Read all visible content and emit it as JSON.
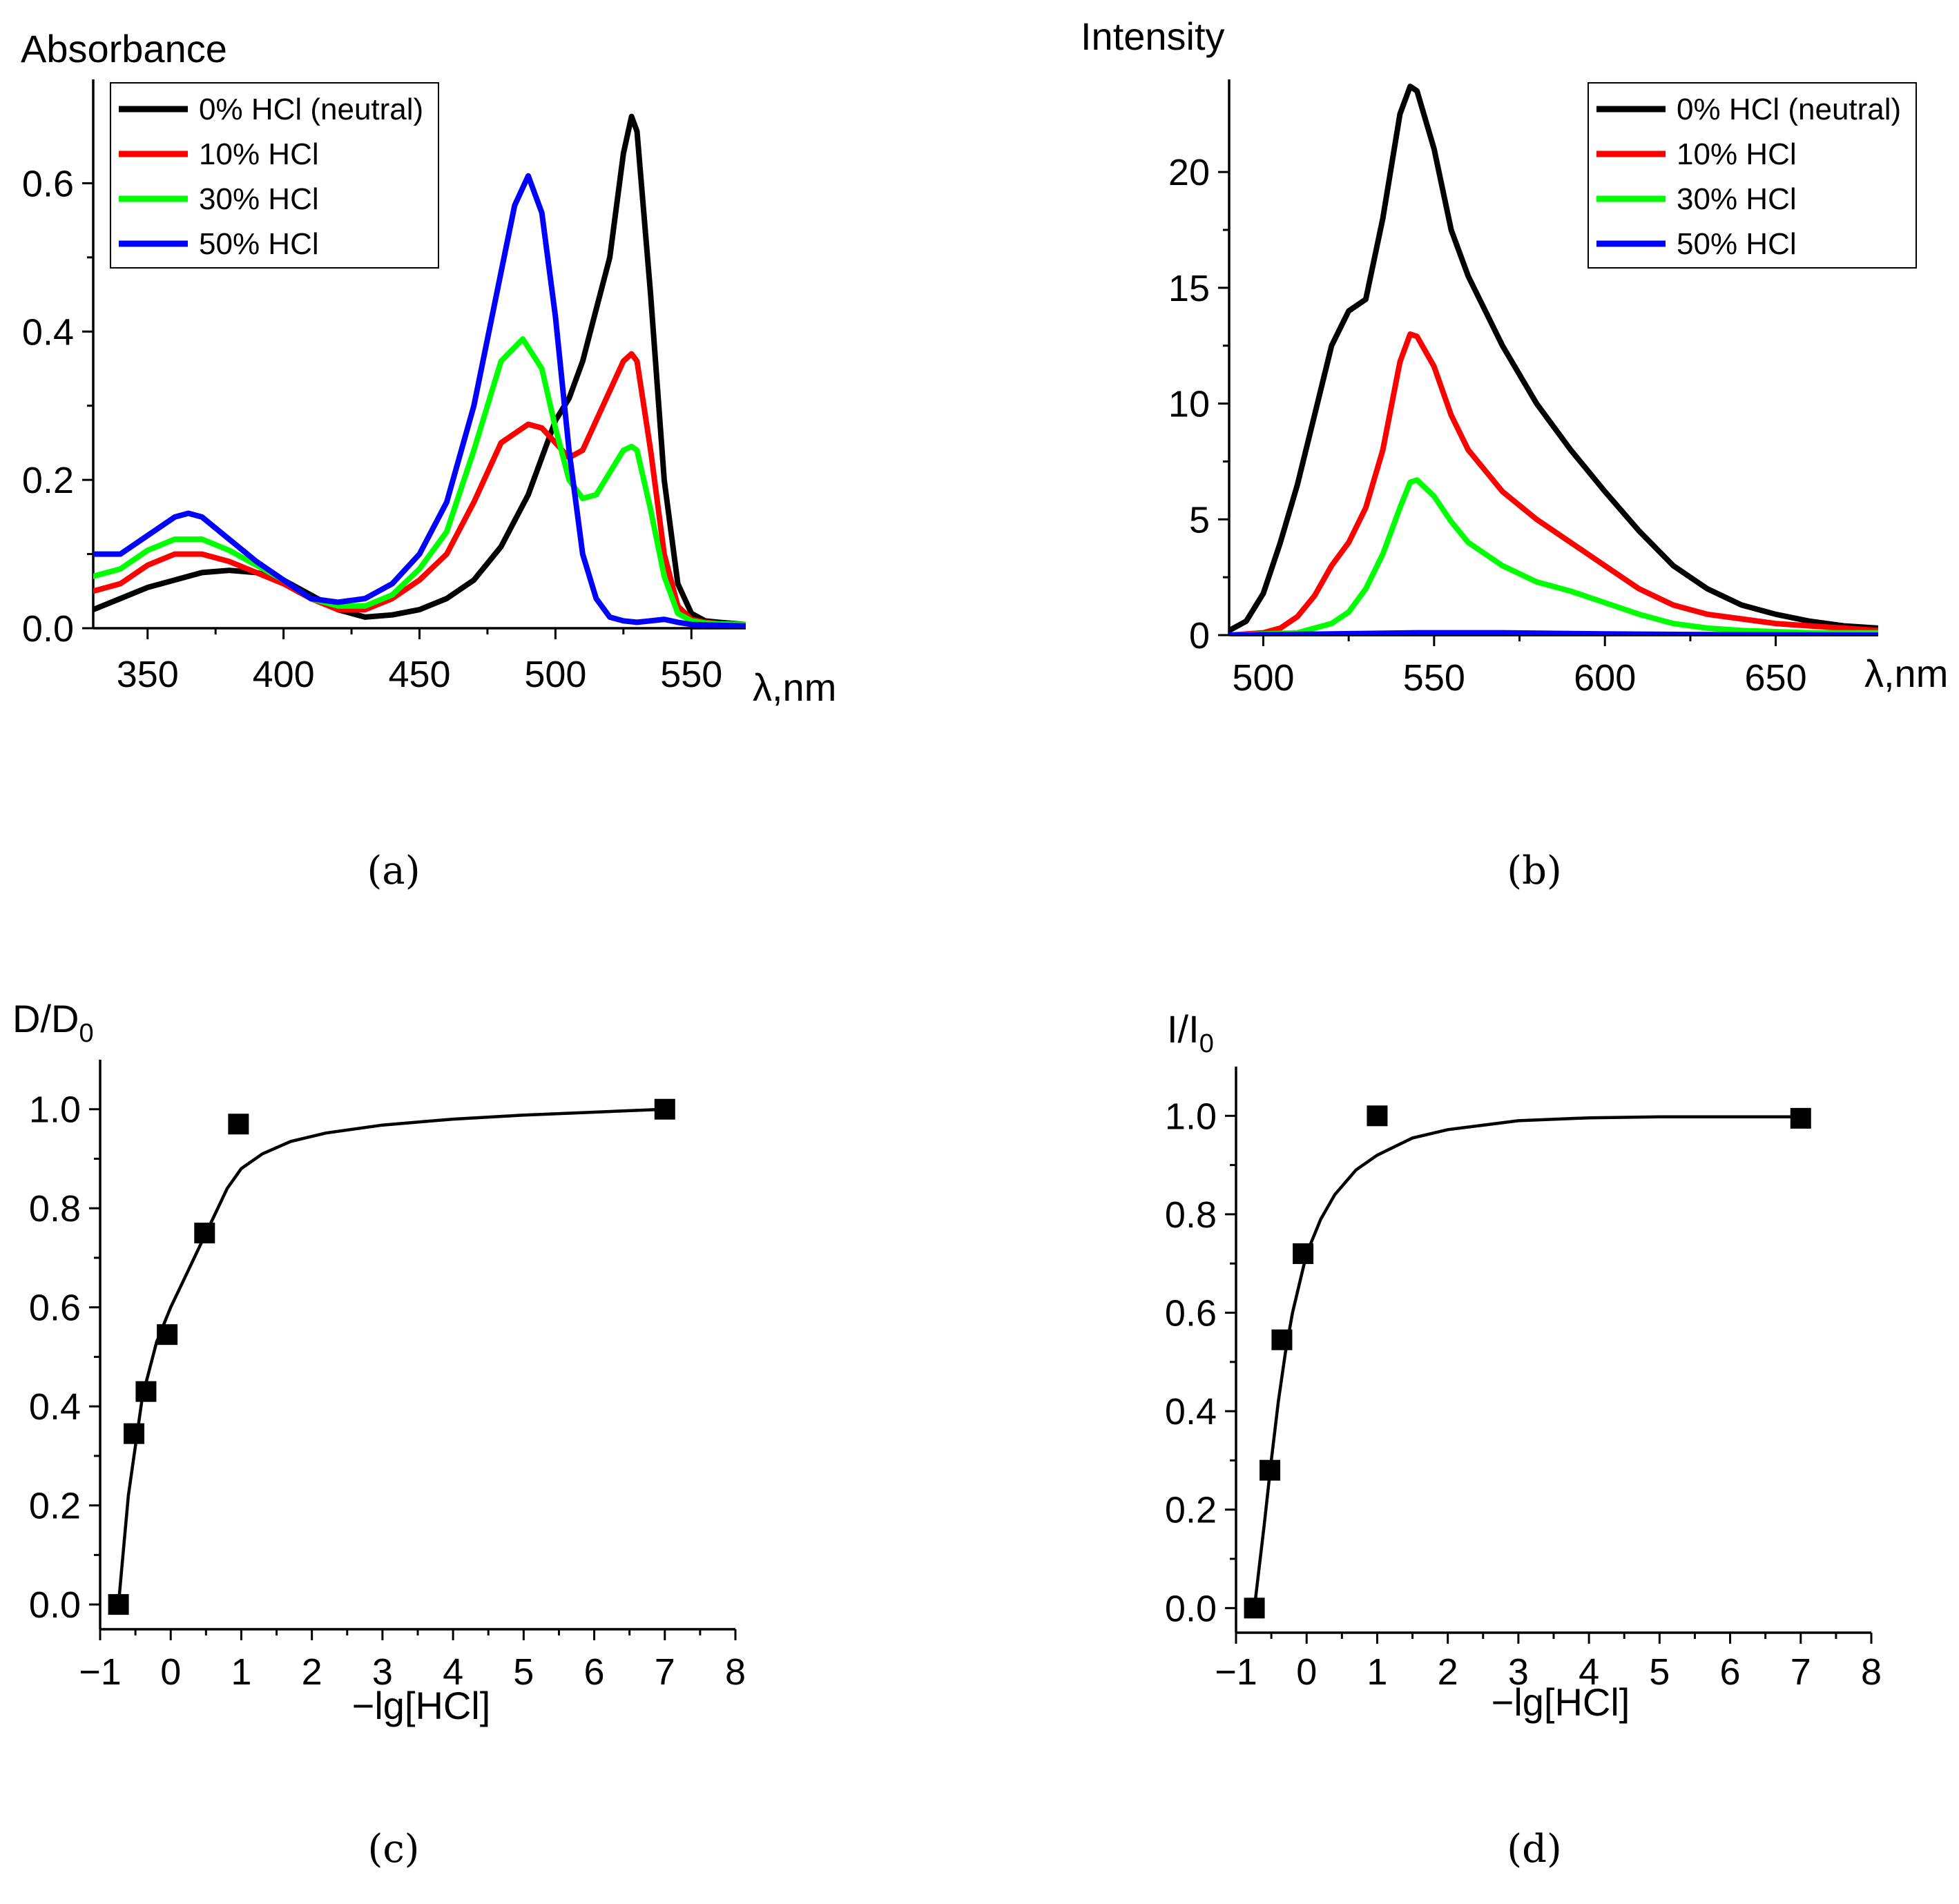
{
  "panel_labels": [
    "(a)",
    "(b)",
    "(c)",
    "(d)"
  ],
  "chart_data": [
    {
      "id": "a",
      "type": "line",
      "ylabel": "Absorbance",
      "xlabel": "λ,nm",
      "xlim": [
        330,
        570
      ],
      "ylim": [
        0,
        0.74
      ],
      "xticks": [
        350,
        400,
        450,
        500,
        550
      ],
      "yticks": [
        0.0,
        0.2,
        0.4,
        0.6
      ],
      "ytick_labels": [
        "0.0",
        "0.2",
        "0.4",
        "0.6"
      ],
      "legend": "top-left",
      "grid": false,
      "series": [
        {
          "name": "0% HCl (neutral)",
          "color": "#000000",
          "x": [
            330,
            340,
            350,
            360,
            370,
            380,
            390,
            400,
            410,
            420,
            430,
            440,
            450,
            460,
            470,
            480,
            490,
            495,
            500,
            505,
            510,
            515,
            520,
            525,
            528,
            530,
            535,
            540,
            545,
            550,
            555,
            560,
            570
          ],
          "y": [
            0.025,
            0.04,
            0.055,
            0.065,
            0.075,
            0.078,
            0.075,
            0.065,
            0.045,
            0.025,
            0.015,
            0.018,
            0.025,
            0.04,
            0.065,
            0.11,
            0.18,
            0.23,
            0.28,
            0.31,
            0.36,
            0.43,
            0.5,
            0.64,
            0.69,
            0.67,
            0.45,
            0.2,
            0.06,
            0.02,
            0.01,
            0.008,
            0.005
          ]
        },
        {
          "name": "10% HCl",
          "color": "#ff0000",
          "x": [
            330,
            340,
            350,
            360,
            370,
            380,
            390,
            400,
            410,
            420,
            430,
            440,
            450,
            460,
            470,
            480,
            490,
            495,
            500,
            505,
            510,
            515,
            520,
            525,
            528,
            530,
            535,
            540,
            545,
            550,
            555,
            560,
            570
          ],
          "y": [
            0.05,
            0.06,
            0.085,
            0.1,
            0.1,
            0.09,
            0.075,
            0.06,
            0.04,
            0.025,
            0.025,
            0.04,
            0.065,
            0.1,
            0.17,
            0.25,
            0.275,
            0.27,
            0.25,
            0.23,
            0.24,
            0.28,
            0.32,
            0.36,
            0.37,
            0.36,
            0.24,
            0.1,
            0.03,
            0.012,
            0.008,
            0.006,
            0.005
          ]
        },
        {
          "name": "30% HCl",
          "color": "#00ff00",
          "x": [
            330,
            340,
            350,
            360,
            370,
            380,
            390,
            400,
            410,
            420,
            430,
            440,
            450,
            460,
            470,
            480,
            488,
            495,
            500,
            505,
            510,
            515,
            520,
            525,
            528,
            530,
            535,
            540,
            545,
            550,
            555,
            560,
            570
          ],
          "y": [
            0.07,
            0.08,
            0.105,
            0.12,
            0.12,
            0.105,
            0.085,
            0.065,
            0.04,
            0.03,
            0.03,
            0.045,
            0.08,
            0.13,
            0.24,
            0.36,
            0.39,
            0.35,
            0.27,
            0.2,
            0.175,
            0.18,
            0.21,
            0.24,
            0.245,
            0.24,
            0.16,
            0.07,
            0.02,
            0.01,
            0.007,
            0.006,
            0.005
          ]
        },
        {
          "name": "50% HCl",
          "color": "#0000ff",
          "x": [
            330,
            340,
            350,
            360,
            365,
            370,
            380,
            390,
            400,
            410,
            420,
            430,
            440,
            450,
            460,
            470,
            480,
            485,
            490,
            495,
            500,
            505,
            510,
            515,
            520,
            525,
            530,
            535,
            540,
            545,
            550,
            560,
            570
          ],
          "y": [
            0.1,
            0.1,
            0.125,
            0.15,
            0.155,
            0.15,
            0.12,
            0.09,
            0.065,
            0.04,
            0.035,
            0.04,
            0.06,
            0.1,
            0.17,
            0.3,
            0.48,
            0.57,
            0.61,
            0.56,
            0.42,
            0.24,
            0.1,
            0.04,
            0.015,
            0.01,
            0.008,
            0.01,
            0.012,
            0.008,
            0.005,
            0.004,
            0.003
          ]
        }
      ]
    },
    {
      "id": "b",
      "type": "line",
      "ylabel": "Intensity",
      "xlabel": "λ,nm",
      "xlim": [
        490,
        680
      ],
      "ylim": [
        0,
        24
      ],
      "xticks": [
        500,
        550,
        600,
        650
      ],
      "yticks": [
        0,
        5,
        10,
        15,
        20
      ],
      "ytick_labels": [
        "0",
        "5",
        "10",
        "15",
        "20"
      ],
      "legend": "top-right",
      "grid": false,
      "series": [
        {
          "name": "0% HCl (neutral)",
          "color": "#000000",
          "x": [
            490,
            495,
            500,
            505,
            510,
            515,
            520,
            525,
            530,
            535,
            540,
            543,
            545,
            550,
            555,
            560,
            570,
            580,
            590,
            600,
            610,
            620,
            630,
            640,
            650,
            660,
            670,
            680
          ],
          "y": [
            0.2,
            0.6,
            1.8,
            4.0,
            6.5,
            9.5,
            12.5,
            14.0,
            14.5,
            18.0,
            22.5,
            23.7,
            23.5,
            21.0,
            17.5,
            15.5,
            12.5,
            10.0,
            8.0,
            6.2,
            4.5,
            3.0,
            2.0,
            1.3,
            0.9,
            0.6,
            0.4,
            0.3
          ]
        },
        {
          "name": "10% HCl",
          "color": "#ff0000",
          "x": [
            490,
            500,
            505,
            510,
            515,
            520,
            525,
            530,
            535,
            540,
            543,
            545,
            550,
            555,
            560,
            570,
            580,
            590,
            600,
            610,
            620,
            630,
            640,
            650,
            660,
            670,
            680
          ],
          "y": [
            0.0,
            0.1,
            0.3,
            0.8,
            1.7,
            3.0,
            4.0,
            5.5,
            8.0,
            11.8,
            13.0,
            12.9,
            11.6,
            9.5,
            8.0,
            6.2,
            5.0,
            4.0,
            3.0,
            2.0,
            1.3,
            0.9,
            0.7,
            0.5,
            0.4,
            0.3,
            0.2
          ]
        },
        {
          "name": "30% HCl",
          "color": "#00ff00",
          "x": [
            490,
            510,
            520,
            525,
            530,
            535,
            540,
            543,
            545,
            550,
            555,
            560,
            570,
            580,
            590,
            600,
            610,
            620,
            630,
            640,
            650,
            660,
            670,
            680
          ],
          "y": [
            0.0,
            0.1,
            0.5,
            1.0,
            2.0,
            3.5,
            5.5,
            6.6,
            6.7,
            6.0,
            4.9,
            4.0,
            3.0,
            2.3,
            1.9,
            1.4,
            0.9,
            0.5,
            0.3,
            0.2,
            0.15,
            0.1,
            0.1,
            0.1
          ]
        },
        {
          "name": "50% HCl",
          "color": "#0000ff",
          "x": [
            490,
            520,
            545,
            570,
            600,
            630,
            660,
            680
          ],
          "y": [
            0.0,
            0.05,
            0.1,
            0.1,
            0.05,
            0.02,
            0.01,
            0.0
          ]
        }
      ]
    },
    {
      "id": "c",
      "type": "scatter",
      "ylabel": "D/D",
      "ylabel_sub": "0",
      "xlabel": "−lg[HCl]",
      "xlim": [
        -1,
        8
      ],
      "ylim": [
        -0.05,
        1.1
      ],
      "xticks": [
        -1,
        0,
        1,
        2,
        3,
        4,
        5,
        6,
        7,
        8
      ],
      "xtick_labels": [
        "−1",
        "0",
        "1",
        "2",
        "3",
        "4",
        "5",
        "6",
        "7",
        "8"
      ],
      "yticks": [
        0.0,
        0.2,
        0.4,
        0.6,
        0.8,
        1.0
      ],
      "ytick_labels": [
        "0.0",
        "0.2",
        "0.4",
        "0.6",
        "0.8",
        "1.0"
      ],
      "grid": false,
      "points": {
        "x": [
          -0.74,
          -0.52,
          -0.35,
          -0.05,
          0.48,
          0.96,
          7.0
        ],
        "y": [
          0.0,
          0.345,
          0.43,
          0.545,
          0.75,
          0.97,
          1.0
        ]
      },
      "fit": {
        "x": [
          -0.74,
          -0.6,
          -0.4,
          -0.2,
          0.0,
          0.2,
          0.4,
          0.6,
          0.8,
          1.0,
          1.3,
          1.7,
          2.2,
          3.0,
          4.0,
          5.0,
          6.0,
          7.0
        ],
        "y": [
          0.0,
          0.22,
          0.42,
          0.53,
          0.6,
          0.66,
          0.72,
          0.78,
          0.84,
          0.88,
          0.91,
          0.935,
          0.952,
          0.968,
          0.98,
          0.988,
          0.994,
          1.0
        ]
      }
    },
    {
      "id": "d",
      "type": "scatter",
      "ylabel": "I/I",
      "ylabel_sub": "0",
      "xlabel": "−lg[HCl]",
      "xlim": [
        -1,
        8
      ],
      "ylim": [
        -0.05,
        1.1
      ],
      "xticks": [
        -1,
        0,
        1,
        2,
        3,
        4,
        5,
        6,
        7,
        8
      ],
      "xtick_labels": [
        "−1",
        "0",
        "1",
        "2",
        "3",
        "4",
        "5",
        "6",
        "7",
        "8"
      ],
      "yticks": [
        0.0,
        0.2,
        0.4,
        0.6,
        0.8,
        1.0
      ],
      "ytick_labels": [
        "0.0",
        "0.2",
        "0.4",
        "0.6",
        "0.8",
        "1.0"
      ],
      "grid": false,
      "points": {
        "x": [
          -0.74,
          -0.52,
          -0.35,
          -0.05,
          1.0,
          7.0
        ],
        "y": [
          0.0,
          0.28,
          0.545,
          0.72,
          1.0,
          0.995
        ]
      },
      "fit": {
        "x": [
          -0.74,
          -0.6,
          -0.5,
          -0.4,
          -0.3,
          -0.2,
          -0.1,
          0.0,
          0.2,
          0.4,
          0.7,
          1.0,
          1.5,
          2.0,
          3.0,
          4.0,
          5.0,
          6.0,
          7.0
        ],
        "y": [
          0.0,
          0.17,
          0.3,
          0.42,
          0.52,
          0.6,
          0.66,
          0.72,
          0.79,
          0.84,
          0.89,
          0.92,
          0.955,
          0.972,
          0.99,
          0.996,
          0.998,
          0.998,
          0.998
        ]
      }
    }
  ]
}
